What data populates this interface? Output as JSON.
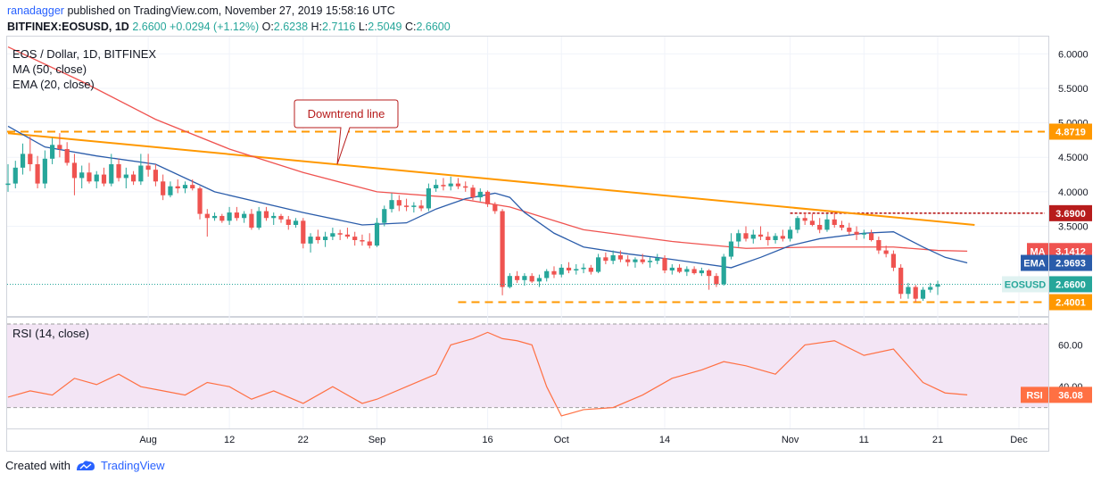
{
  "header": {
    "author": "ranadagger",
    "published": "published on TradingView.com, November 27, 2019 15:58:16 UTC",
    "symbol": "BITFINEX:EOSUSD, 1D",
    "last": "2.6600",
    "change": "+0.0294 (+1.12%)",
    "o_label": "O:",
    "o": "2.6238",
    "h_label": "H:",
    "h": "2.7116",
    "l_label": "L:",
    "l": "2.5049",
    "c_label": "C:",
    "c": "2.6600"
  },
  "legend": {
    "title": "EOS / Dollar, 1D, BITFINEX",
    "ma": "MA (50, close)",
    "ema": "EMA (20, close)",
    "rsi": "RSI (14, close)"
  },
  "annotation": {
    "text": "Downtrend line"
  },
  "footer": {
    "created_with": "Created with",
    "brand": "TradingView"
  },
  "colors": {
    "up": "#26a69a",
    "down": "#ef5350",
    "ma": "#ef5350",
    "ema": "#2a5caa",
    "trendline": "#ff9800",
    "resistance": "#b71c1c",
    "rsi": "#ff7043",
    "rsi_band": "#f3e5f5"
  },
  "chart_data": [
    {
      "type": "candlestick",
      "title": "EOS / Dollar, 1D, BITFINEX",
      "x_labels": [
        "Aug",
        "12",
        "22",
        "Sep",
        "16",
        "Oct",
        "14",
        "Nov",
        "11",
        "21",
        "Dec"
      ],
      "x_label_indices": [
        19,
        30,
        40,
        50,
        65,
        75,
        89,
        106,
        116,
        126,
        137
      ],
      "y_ticks": [
        "6.0000",
        "5.5000",
        "5.0000",
        "4.5000",
        "4.0000",
        "3.5000"
      ],
      "y_tick_values": [
        6.0,
        5.5,
        5.0,
        4.5,
        4.0,
        3.5
      ],
      "ylim": [
        2.2,
        6.25
      ],
      "candles_ohlc": [
        [
          4.1,
          4.4,
          4.0,
          4.12
        ],
        [
          4.12,
          4.45,
          4.05,
          4.35
        ],
        [
          4.35,
          4.7,
          4.25,
          4.55
        ],
        [
          4.55,
          4.8,
          4.3,
          4.4
        ],
        [
          4.4,
          4.52,
          4.05,
          4.12
        ],
        [
          4.12,
          4.6,
          4.05,
          4.48
        ],
        [
          4.48,
          4.78,
          4.4,
          4.68
        ],
        [
          4.68,
          4.85,
          4.5,
          4.62
        ],
        [
          4.62,
          4.72,
          4.38,
          4.42
        ],
        [
          4.42,
          4.55,
          3.95,
          4.2
        ],
        [
          4.2,
          4.38,
          4.05,
          4.28
        ],
        [
          4.28,
          4.42,
          4.12,
          4.15
        ],
        [
          4.15,
          4.3,
          4.05,
          4.25
        ],
        [
          4.25,
          4.35,
          4.08,
          4.12
        ],
        [
          4.12,
          4.55,
          4.08,
          4.4
        ],
        [
          4.4,
          4.48,
          4.15,
          4.2
        ],
        [
          4.2,
          4.35,
          4.05,
          4.25
        ],
        [
          4.25,
          4.3,
          4.1,
          4.15
        ],
        [
          4.15,
          4.55,
          4.1,
          4.38
        ],
        [
          4.38,
          4.55,
          4.22,
          4.32
        ],
        [
          4.32,
          4.4,
          4.08,
          4.15
        ],
        [
          4.15,
          4.25,
          3.88,
          3.95
        ],
        [
          3.95,
          4.15,
          3.92,
          4.08
        ],
        [
          4.08,
          4.18,
          3.98,
          4.05
        ],
        [
          4.05,
          4.15,
          3.98,
          4.1
        ],
        [
          4.1,
          4.18,
          4.02,
          4.05
        ],
        [
          4.05,
          4.08,
          3.6,
          3.68
        ],
        [
          3.68,
          3.75,
          3.35,
          3.62
        ],
        [
          3.62,
          3.7,
          3.58,
          3.65
        ],
        [
          3.65,
          3.68,
          3.55,
          3.58
        ],
        [
          3.58,
          3.78,
          3.52,
          3.7
        ],
        [
          3.7,
          3.78,
          3.58,
          3.62
        ],
        [
          3.62,
          3.72,
          3.55,
          3.68
        ],
        [
          3.68,
          3.75,
          3.45,
          3.48
        ],
        [
          3.48,
          3.78,
          3.45,
          3.72
        ],
        [
          3.72,
          3.78,
          3.58,
          3.62
        ],
        [
          3.62,
          3.7,
          3.52,
          3.65
        ],
        [
          3.65,
          3.68,
          3.55,
          3.6
        ],
        [
          3.6,
          3.65,
          3.45,
          3.52
        ],
        [
          3.52,
          3.62,
          3.48,
          3.58
        ],
        [
          3.58,
          3.62,
          3.18,
          3.25
        ],
        [
          3.25,
          3.4,
          3.12,
          3.35
        ],
        [
          3.35,
          3.45,
          3.25,
          3.3
        ],
        [
          3.3,
          3.42,
          3.2,
          3.35
        ],
        [
          3.35,
          3.48,
          3.3,
          3.4
        ],
        [
          3.4,
          3.45,
          3.3,
          3.38
        ],
        [
          3.38,
          3.48,
          3.32,
          3.35
        ],
        [
          3.35,
          3.42,
          3.22,
          3.3
        ],
        [
          3.3,
          3.38,
          3.22,
          3.28
        ],
        [
          3.28,
          3.4,
          3.18,
          3.22
        ],
        [
          3.22,
          3.62,
          3.2,
          3.55
        ],
        [
          3.55,
          3.8,
          3.5,
          3.75
        ],
        [
          3.75,
          3.98,
          3.7,
          3.88
        ],
        [
          3.88,
          3.95,
          3.72,
          3.8
        ],
        [
          3.8,
          3.9,
          3.72,
          3.78
        ],
        [
          3.78,
          3.85,
          3.7,
          3.8
        ],
        [
          3.8,
          3.88,
          3.72,
          3.76
        ],
        [
          3.76,
          4.12,
          3.72,
          4.05
        ],
        [
          4.05,
          4.18,
          4.0,
          4.1
        ],
        [
          4.1,
          4.2,
          4.02,
          4.08
        ],
        [
          4.08,
          4.22,
          4.02,
          4.12
        ],
        [
          4.12,
          4.2,
          4.04,
          4.08
        ],
        [
          4.08,
          4.15,
          4.0,
          4.06
        ],
        [
          4.06,
          4.1,
          3.88,
          3.92
        ],
        [
          3.92,
          4.05,
          3.86,
          4.0
        ],
        [
          4.0,
          4.02,
          3.78,
          3.82
        ],
        [
          3.82,
          3.85,
          3.68,
          3.72
        ],
        [
          3.72,
          3.75,
          2.5,
          2.62
        ],
        [
          2.62,
          2.82,
          2.6,
          2.78
        ],
        [
          2.78,
          2.85,
          2.68,
          2.72
        ],
        [
          2.72,
          2.82,
          2.64,
          2.78
        ],
        [
          2.78,
          2.82,
          2.68,
          2.7
        ],
        [
          2.7,
          2.8,
          2.62,
          2.75
        ],
        [
          2.75,
          2.88,
          2.7,
          2.85
        ],
        [
          2.85,
          2.92,
          2.75,
          2.8
        ],
        [
          2.8,
          2.95,
          2.76,
          2.9
        ],
        [
          2.9,
          2.98,
          2.82,
          2.86
        ],
        [
          2.86,
          2.95,
          2.8,
          2.88
        ],
        [
          2.88,
          2.96,
          2.82,
          2.9
        ],
        [
          2.9,
          2.94,
          2.8,
          2.84
        ],
        [
          2.84,
          3.1,
          2.82,
          3.05
        ],
        [
          3.05,
          3.12,
          2.95,
          3.0
        ],
        [
          3.0,
          3.15,
          2.95,
          3.08
        ],
        [
          3.08,
          3.15,
          2.98,
          3.02
        ],
        [
          3.02,
          3.08,
          2.92,
          2.98
        ],
        [
          2.98,
          3.05,
          2.9,
          3.02
        ],
        [
          3.02,
          3.1,
          2.95,
          2.98
        ],
        [
          2.98,
          3.05,
          2.9,
          3.0
        ],
        [
          3.0,
          3.1,
          2.95,
          3.04
        ],
        [
          3.04,
          3.08,
          2.82,
          2.86
        ],
        [
          2.86,
          2.95,
          2.8,
          2.9
        ],
        [
          2.9,
          2.95,
          2.82,
          2.84
        ],
        [
          2.84,
          2.92,
          2.78,
          2.88
        ],
        [
          2.88,
          2.92,
          2.8,
          2.82
        ],
        [
          2.82,
          2.9,
          2.78,
          2.86
        ],
        [
          2.86,
          2.88,
          2.58,
          2.78
        ],
        [
          2.78,
          2.82,
          2.62,
          2.66
        ],
        [
          2.66,
          3.1,
          2.64,
          3.06
        ],
        [
          3.06,
          3.4,
          3.02,
          3.28
        ],
        [
          3.28,
          3.45,
          3.2,
          3.4
        ],
        [
          3.4,
          3.5,
          3.28,
          3.32
        ],
        [
          3.32,
          3.45,
          3.25,
          3.38
        ],
        [
          3.38,
          3.5,
          3.3,
          3.35
        ],
        [
          3.35,
          3.42,
          3.22,
          3.3
        ],
        [
          3.3,
          3.4,
          3.25,
          3.36
        ],
        [
          3.36,
          3.45,
          3.28,
          3.32
        ],
        [
          3.32,
          3.5,
          3.28,
          3.45
        ],
        [
          3.45,
          3.65,
          3.4,
          3.62
        ],
        [
          3.62,
          3.7,
          3.52,
          3.58
        ],
        [
          3.58,
          3.68,
          3.5,
          3.52
        ],
        [
          3.52,
          3.62,
          3.4,
          3.45
        ],
        [
          3.45,
          3.68,
          3.42,
          3.6
        ],
        [
          3.6,
          3.7,
          3.48,
          3.52
        ],
        [
          3.52,
          3.58,
          3.44,
          3.48
        ],
        [
          3.48,
          3.55,
          3.38,
          3.42
        ],
        [
          3.42,
          3.5,
          3.3,
          3.38
        ],
        [
          3.38,
          3.45,
          3.32,
          3.4
        ],
        [
          3.4,
          3.45,
          3.28,
          3.3
        ],
        [
          3.3,
          3.35,
          3.1,
          3.15
        ],
        [
          3.15,
          3.22,
          3.05,
          3.1
        ],
        [
          3.1,
          3.15,
          2.85,
          2.9
        ],
        [
          2.9,
          2.95,
          2.45,
          2.52
        ],
        [
          2.52,
          2.68,
          2.45,
          2.62
        ],
        [
          2.62,
          2.65,
          2.4,
          2.45
        ],
        [
          2.45,
          2.62,
          2.42,
          2.58
        ],
        [
          2.58,
          2.68,
          2.54,
          2.62
        ],
        [
          2.6238,
          2.7116,
          2.5049,
          2.66
        ]
      ],
      "ma50_points": [
        [
          0,
          6.1
        ],
        [
          10,
          5.6
        ],
        [
          20,
          5.05
        ],
        [
          30,
          4.62
        ],
        [
          40,
          4.28
        ],
        [
          50,
          4.0
        ],
        [
          60,
          3.92
        ],
        [
          68,
          3.78
        ],
        [
          78,
          3.45
        ],
        [
          90,
          3.28
        ],
        [
          100,
          3.18
        ],
        [
          110,
          3.2
        ],
        [
          120,
          3.2
        ],
        [
          126,
          3.15
        ],
        [
          130,
          3.14
        ]
      ],
      "ema20_points": [
        [
          0,
          4.95
        ],
        [
          5,
          4.65
        ],
        [
          12,
          4.52
        ],
        [
          20,
          4.4
        ],
        [
          28,
          4.0
        ],
        [
          40,
          3.7
        ],
        [
          48,
          3.52
        ],
        [
          54,
          3.55
        ],
        [
          58,
          3.75
        ],
        [
          62,
          3.9
        ],
        [
          66,
          3.98
        ],
        [
          68,
          3.92
        ],
        [
          70,
          3.7
        ],
        [
          74,
          3.4
        ],
        [
          78,
          3.2
        ],
        [
          84,
          3.1
        ],
        [
          90,
          3.02
        ],
        [
          98,
          2.9
        ],
        [
          102,
          3.05
        ],
        [
          106,
          3.22
        ],
        [
          110,
          3.32
        ],
        [
          116,
          3.4
        ],
        [
          120,
          3.42
        ],
        [
          124,
          3.2
        ],
        [
          127,
          3.05
        ],
        [
          130,
          2.97
        ]
      ],
      "trendline": [
        [
          0,
          4.85
        ],
        [
          131,
          3.52
        ]
      ],
      "trendline_label": "Downtrend line",
      "levels": [
        {
          "value": 4.8719,
          "label": "4.8719",
          "style": "dashed",
          "color": "#ff9800"
        },
        {
          "value": 3.69,
          "label": "3.6900",
          "style": "dashed",
          "color": "#b71c1c"
        },
        {
          "value": 2.4001,
          "label": "2.4001",
          "style": "dashed",
          "color": "#ff9800"
        }
      ],
      "price_labels": [
        {
          "name": "MA",
          "value": "3.1412",
          "color": "#ef5350"
        },
        {
          "name": "EMA",
          "value": "2.9693",
          "color": "#2a5caa"
        },
        {
          "name": "EOSUSD",
          "value": "2.6600",
          "color": "#26a69a"
        }
      ],
      "current_price": 2.66
    },
    {
      "type": "line",
      "title": "RSI (14, close)",
      "y_ticks": [
        "60.00",
        "40.00"
      ],
      "y_tick_values": [
        60,
        40
      ],
      "ylim": [
        20,
        73
      ],
      "band": [
        30,
        70
      ],
      "values_points": [
        [
          0,
          35
        ],
        [
          3,
          38
        ],
        [
          6,
          36
        ],
        [
          9,
          44
        ],
        [
          12,
          41
        ],
        [
          15,
          46
        ],
        [
          18,
          40
        ],
        [
          21,
          38
        ],
        [
          24,
          36
        ],
        [
          27,
          42
        ],
        [
          30,
          40
        ],
        [
          33,
          34
        ],
        [
          36,
          38
        ],
        [
          40,
          32
        ],
        [
          44,
          40
        ],
        [
          48,
          32
        ],
        [
          50,
          34
        ],
        [
          54,
          40
        ],
        [
          58,
          46
        ],
        [
          60,
          60
        ],
        [
          63,
          63
        ],
        [
          65,
          66
        ],
        [
          67,
          63
        ],
        [
          69,
          62
        ],
        [
          71,
          60
        ],
        [
          73,
          40
        ],
        [
          75,
          26
        ],
        [
          78,
          29
        ],
        [
          82,
          30
        ],
        [
          86,
          36
        ],
        [
          90,
          44
        ],
        [
          94,
          48
        ],
        [
          97,
          52
        ],
        [
          100,
          50
        ],
        [
          104,
          46
        ],
        [
          108,
          60
        ],
        [
          112,
          62
        ],
        [
          116,
          55
        ],
        [
          120,
          58
        ],
        [
          124,
          42
        ],
        [
          127,
          37
        ],
        [
          130,
          36.08
        ]
      ],
      "current": {
        "label": "RSI",
        "value": "36.08"
      }
    }
  ]
}
